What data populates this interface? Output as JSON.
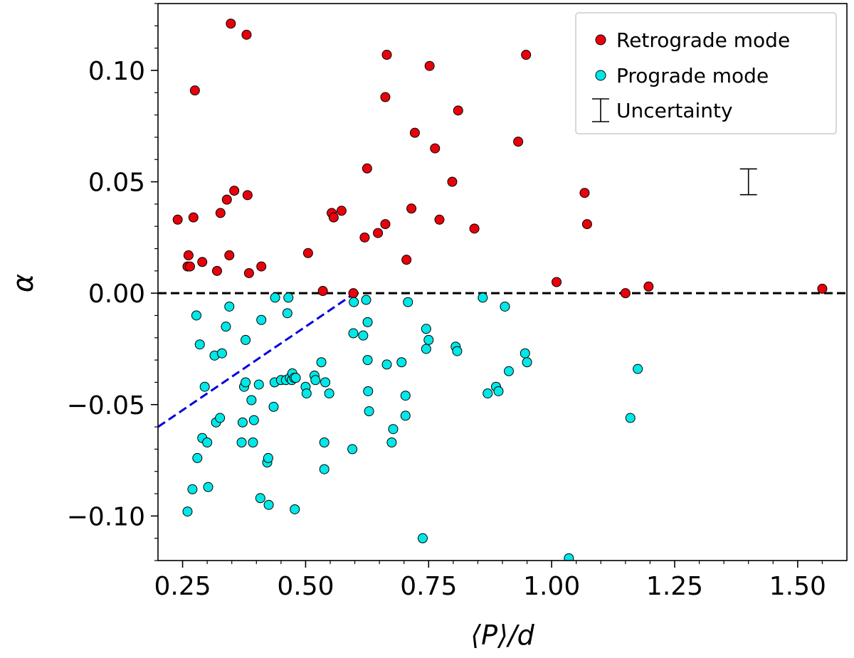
{
  "chart_data": {
    "type": "scatter",
    "title": "",
    "xlabel": "⟨P⟩/d",
    "ylabel": "α",
    "xlim": [
      0.2,
      1.6
    ],
    "ylim": [
      -0.12,
      0.13
    ],
    "xticks": [
      0.25,
      0.5,
      0.75,
      1.0,
      1.25,
      1.5
    ],
    "xtick_labels": [
      "0.25",
      "0.50",
      "0.75",
      "1.00",
      "1.25",
      "1.50"
    ],
    "yticks": [
      -0.1,
      -0.05,
      0.0,
      0.05,
      0.1
    ],
    "ytick_labels": [
      "−0.10",
      "−0.05",
      "0.00",
      "0.05",
      "0.10"
    ],
    "grid": false,
    "legend_position": "top-right",
    "colors": {
      "retrograde": "#e8000b",
      "prograde": "#00e8e8",
      "marker_edge": "#000000",
      "zero_line": "#000000",
      "blue_line": "#0000e0",
      "legend_border": "#cccccc"
    },
    "legend": {
      "retrograde_label": "Retrograde mode",
      "prograde_label": "Prograde mode",
      "uncertainty_label": "Uncertainty"
    },
    "uncertainty_bar": {
      "x": 1.4,
      "y": 0.05,
      "half_height": 0.0058
    },
    "reference_lines": [
      {
        "name": "zero-line",
        "x": [
          0.2,
          1.6
        ],
        "y": [
          0.0,
          0.0
        ],
        "style": "dashed"
      },
      {
        "name": "blue-dashed-line",
        "x": [
          0.2,
          0.6
        ],
        "y": [
          -0.06,
          0.0
        ],
        "style": "dashed"
      }
    ],
    "series": [
      {
        "name": "Retrograde mode",
        "points": [
          [
            0.24,
            0.033
          ],
          [
            0.26,
            0.012
          ],
          [
            0.262,
            0.017
          ],
          [
            0.265,
            0.012
          ],
          [
            0.272,
            0.034
          ],
          [
            0.275,
            0.091
          ],
          [
            0.29,
            0.014
          ],
          [
            0.32,
            0.01
          ],
          [
            0.327,
            0.036
          ],
          [
            0.34,
            0.042
          ],
          [
            0.345,
            0.017
          ],
          [
            0.348,
            0.121
          ],
          [
            0.355,
            0.046
          ],
          [
            0.38,
            0.116
          ],
          [
            0.382,
            0.044
          ],
          [
            0.385,
            0.009
          ],
          [
            0.41,
            0.012
          ],
          [
            0.505,
            0.018
          ],
          [
            0.535,
            0.001
          ],
          [
            0.553,
            0.036
          ],
          [
            0.557,
            0.034
          ],
          [
            0.573,
            0.037
          ],
          [
            0.597,
            0.0
          ],
          [
            0.62,
            0.025
          ],
          [
            0.625,
            0.056
          ],
          [
            0.647,
            0.027
          ],
          [
            0.662,
            0.031
          ],
          [
            0.662,
            0.088
          ],
          [
            0.665,
            0.107
          ],
          [
            0.705,
            0.015
          ],
          [
            0.715,
            0.038
          ],
          [
            0.722,
            0.072
          ],
          [
            0.752,
            0.102
          ],
          [
            0.763,
            0.065
          ],
          [
            0.772,
            0.033
          ],
          [
            0.798,
            0.05
          ],
          [
            0.81,
            0.082
          ],
          [
            0.843,
            0.029
          ],
          [
            0.932,
            0.068
          ],
          [
            0.948,
            0.107
          ],
          [
            1.01,
            0.005
          ],
          [
            1.067,
            0.045
          ],
          [
            1.072,
            0.031
          ],
          [
            1.15,
            0.0
          ],
          [
            1.197,
            0.003
          ],
          [
            1.55,
            0.002
          ]
        ]
      },
      {
        "name": "Prograde mode",
        "points": [
          [
            0.26,
            -0.098
          ],
          [
            0.27,
            -0.088
          ],
          [
            0.278,
            -0.01
          ],
          [
            0.28,
            -0.074
          ],
          [
            0.285,
            -0.023
          ],
          [
            0.29,
            -0.065
          ],
          [
            0.295,
            -0.042
          ],
          [
            0.3,
            -0.067
          ],
          [
            0.302,
            -0.087
          ],
          [
            0.315,
            -0.028
          ],
          [
            0.318,
            -0.058
          ],
          [
            0.326,
            -0.056
          ],
          [
            0.33,
            -0.027
          ],
          [
            0.338,
            -0.015
          ],
          [
            0.345,
            -0.006
          ],
          [
            0.37,
            -0.067
          ],
          [
            0.372,
            -0.058
          ],
          [
            0.375,
            -0.042
          ],
          [
            0.378,
            -0.04
          ],
          [
            0.378,
            -0.021
          ],
          [
            0.39,
            -0.048
          ],
          [
            0.393,
            -0.067
          ],
          [
            0.395,
            -0.057
          ],
          [
            0.405,
            -0.041
          ],
          [
            0.408,
            -0.092
          ],
          [
            0.41,
            -0.012
          ],
          [
            0.422,
            -0.076
          ],
          [
            0.424,
            -0.074
          ],
          [
            0.425,
            -0.095
          ],
          [
            0.435,
            -0.051
          ],
          [
            0.437,
            -0.04
          ],
          [
            0.438,
            -0.002
          ],
          [
            0.45,
            -0.039
          ],
          [
            0.46,
            -0.039
          ],
          [
            0.463,
            -0.009
          ],
          [
            0.465,
            -0.002
          ],
          [
            0.468,
            -0.038
          ],
          [
            0.472,
            -0.039
          ],
          [
            0.473,
            -0.036
          ],
          [
            0.477,
            -0.038
          ],
          [
            0.478,
            -0.097
          ],
          [
            0.48,
            -0.038
          ],
          [
            0.5,
            -0.042
          ],
          [
            0.502,
            -0.045
          ],
          [
            0.518,
            -0.037
          ],
          [
            0.52,
            -0.039
          ],
          [
            0.532,
            -0.031
          ],
          [
            0.538,
            -0.067
          ],
          [
            0.538,
            -0.079
          ],
          [
            0.54,
            -0.04
          ],
          [
            0.548,
            -0.045
          ],
          [
            0.595,
            -0.07
          ],
          [
            0.597,
            -0.018
          ],
          [
            0.598,
            -0.004
          ],
          [
            0.617,
            -0.019
          ],
          [
            0.623,
            -0.003
          ],
          [
            0.626,
            -0.013
          ],
          [
            0.626,
            -0.03
          ],
          [
            0.627,
            -0.044
          ],
          [
            0.629,
            -0.053
          ],
          [
            0.665,
            -0.032
          ],
          [
            0.675,
            -0.067
          ],
          [
            0.678,
            -0.061
          ],
          [
            0.695,
            -0.031
          ],
          [
            0.703,
            -0.046
          ],
          [
            0.703,
            -0.055
          ],
          [
            0.708,
            -0.004
          ],
          [
            0.738,
            -0.11
          ],
          [
            0.745,
            -0.016
          ],
          [
            0.745,
            -0.025
          ],
          [
            0.75,
            -0.021
          ],
          [
            0.805,
            -0.024
          ],
          [
            0.808,
            -0.026
          ],
          [
            0.86,
            -0.002
          ],
          [
            0.87,
            -0.045
          ],
          [
            0.887,
            -0.042
          ],
          [
            0.892,
            -0.044
          ],
          [
            0.905,
            -0.006
          ],
          [
            0.913,
            -0.035
          ],
          [
            0.946,
            -0.027
          ],
          [
            0.95,
            -0.031
          ],
          [
            1.035,
            -0.119
          ],
          [
            1.16,
            -0.056
          ],
          [
            1.175,
            -0.034
          ]
        ]
      }
    ]
  }
}
